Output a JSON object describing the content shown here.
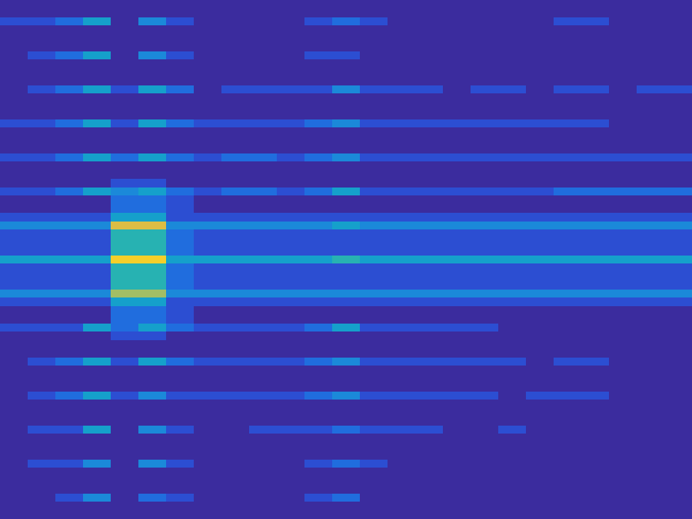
{
  "chart_data": {
    "type": "heatmap",
    "tick_labels": false,
    "color_range": [
      0,
      10
    ],
    "cells": [
      [
        0,
        0,
        0,
        0,
        0,
        0,
        0,
        0,
        0,
        0,
        0,
        0,
        0,
        0,
        0,
        0,
        0,
        0,
        0,
        0,
        0,
        0,
        0,
        0,
        0
      ],
      [
        0,
        0,
        0,
        0,
        0,
        0,
        0,
        0,
        0,
        0,
        0,
        0,
        0,
        0,
        0,
        0,
        0,
        0,
        0,
        0,
        0,
        0,
        0,
        0,
        0
      ],
      [
        1,
        1,
        2,
        4,
        0,
        3,
        1,
        0,
        0,
        0,
        0,
        1,
        2,
        1,
        0,
        0,
        0,
        0,
        0,
        0,
        1,
        1,
        0,
        0,
        0
      ],
      [
        0,
        0,
        0,
        0,
        0,
        0,
        0,
        0,
        0,
        0,
        0,
        0,
        0,
        0,
        0,
        0,
        0,
        0,
        0,
        0,
        0,
        0,
        0,
        0,
        0
      ],
      [
        0,
        0,
        0,
        0,
        0,
        0,
        0,
        0,
        0,
        0,
        0,
        0,
        0,
        0,
        0,
        0,
        0,
        0,
        0,
        0,
        0,
        0,
        0,
        0,
        0
      ],
      [
        0,
        0,
        0,
        0,
        0,
        0,
        0,
        0,
        0,
        0,
        0,
        0,
        0,
        0,
        0,
        0,
        0,
        0,
        0,
        0,
        0,
        0,
        0,
        0,
        0
      ],
      [
        0,
        1,
        2,
        4,
        0,
        3,
        1,
        0,
        0,
        0,
        0,
        1,
        1,
        0,
        0,
        0,
        0,
        0,
        0,
        0,
        0,
        0,
        0,
        0,
        0
      ],
      [
        0,
        0,
        0,
        0,
        0,
        0,
        0,
        0,
        0,
        0,
        0,
        0,
        0,
        0,
        0,
        0,
        0,
        0,
        0,
        0,
        0,
        0,
        0,
        0,
        0
      ],
      [
        0,
        0,
        0,
        0,
        0,
        0,
        0,
        0,
        0,
        0,
        0,
        0,
        0,
        0,
        0,
        0,
        0,
        0,
        0,
        0,
        0,
        0,
        0,
        0,
        0
      ],
      [
        0,
        0,
        0,
        0,
        0,
        0,
        0,
        0,
        0,
        0,
        0,
        0,
        0,
        0,
        0,
        0,
        0,
        0,
        0,
        0,
        0,
        0,
        0,
        0,
        0
      ],
      [
        0,
        1,
        2,
        4,
        1,
        4,
        2,
        0,
        1,
        1,
        1,
        1,
        3,
        1,
        1,
        1,
        0,
        1,
        1,
        0,
        1,
        1,
        0,
        1,
        1
      ],
      [
        0,
        0,
        0,
        0,
        0,
        0,
        0,
        0,
        0,
        0,
        0,
        0,
        0,
        0,
        0,
        0,
        0,
        0,
        0,
        0,
        0,
        0,
        0,
        0,
        0
      ],
      [
        0,
        0,
        0,
        0,
        0,
        0,
        0,
        0,
        0,
        0,
        0,
        0,
        0,
        0,
        0,
        0,
        0,
        0,
        0,
        0,
        0,
        0,
        0,
        0,
        0
      ],
      [
        0,
        0,
        0,
        0,
        0,
        0,
        0,
        0,
        0,
        0,
        0,
        0,
        0,
        0,
        0,
        0,
        0,
        0,
        0,
        0,
        0,
        0,
        0,
        0,
        0
      ],
      [
        1,
        1,
        2,
        4,
        1,
        4,
        2,
        1,
        1,
        1,
        1,
        2,
        3,
        1,
        1,
        1,
        1,
        1,
        1,
        1,
        1,
        1,
        0,
        0,
        0
      ],
      [
        0,
        0,
        0,
        0,
        0,
        0,
        0,
        0,
        0,
        0,
        0,
        0,
        0,
        0,
        0,
        0,
        0,
        0,
        0,
        0,
        0,
        0,
        0,
        0,
        0
      ],
      [
        0,
        0,
        0,
        0,
        0,
        0,
        0,
        0,
        0,
        0,
        0,
        0,
        0,
        0,
        0,
        0,
        0,
        0,
        0,
        0,
        0,
        0,
        0,
        0,
        0
      ],
      [
        0,
        0,
        0,
        0,
        0,
        0,
        0,
        0,
        0,
        0,
        0,
        0,
        0,
        0,
        0,
        0,
        0,
        0,
        0,
        0,
        0,
        0,
        0,
        0,
        0
      ],
      [
        1,
        1,
        2,
        4,
        2,
        4,
        2,
        1,
        2,
        2,
        1,
        2,
        3,
        1,
        1,
        1,
        1,
        1,
        1,
        1,
        1,
        1,
        1,
        1,
        1
      ],
      [
        0,
        0,
        0,
        0,
        0,
        0,
        0,
        0,
        0,
        0,
        0,
        0,
        0,
        0,
        0,
        0,
        0,
        0,
        0,
        0,
        0,
        0,
        0,
        0,
        0
      ],
      [
        0,
        0,
        0,
        0,
        0,
        0,
        0,
        0,
        0,
        0,
        0,
        0,
        0,
        0,
        0,
        0,
        0,
        0,
        0,
        0,
        0,
        0,
        0,
        0,
        0
      ],
      [
        0,
        0,
        0,
        0,
        1,
        1,
        0,
        0,
        0,
        0,
        0,
        0,
        0,
        0,
        0,
        0,
        0,
        0,
        0,
        0,
        0,
        0,
        0,
        0,
        0
      ],
      [
        1,
        1,
        2,
        4,
        3,
        4,
        2,
        1,
        2,
        2,
        1,
        2,
        4,
        1,
        1,
        1,
        1,
        1,
        1,
        1,
        2,
        2,
        2,
        2,
        2
      ],
      [
        0,
        0,
        0,
        0,
        2,
        2,
        1,
        0,
        0,
        0,
        0,
        0,
        0,
        0,
        0,
        0,
        0,
        0,
        0,
        0,
        0,
        0,
        0,
        0,
        0
      ],
      [
        0,
        0,
        0,
        0,
        2,
        2,
        1,
        0,
        0,
        0,
        0,
        0,
        0,
        0,
        0,
        0,
        0,
        0,
        0,
        0,
        0,
        0,
        0,
        0,
        0
      ],
      [
        1,
        1,
        1,
        1,
        4,
        4,
        1,
        1,
        1,
        1,
        1,
        1,
        1,
        1,
        1,
        1,
        1,
        1,
        1,
        1,
        1,
        1,
        1,
        1,
        1
      ],
      [
        3,
        3,
        3,
        3,
        8,
        8,
        3,
        3,
        3,
        3,
        3,
        3,
        4,
        3,
        3,
        3,
        3,
        3,
        3,
        3,
        3,
        3,
        3,
        3,
        3
      ],
      [
        1,
        1,
        1,
        1,
        5,
        5,
        2,
        1,
        1,
        1,
        1,
        1,
        1,
        1,
        1,
        1,
        1,
        1,
        1,
        1,
        1,
        1,
        1,
        1,
        1
      ],
      [
        1,
        1,
        1,
        1,
        5,
        5,
        2,
        1,
        1,
        1,
        1,
        1,
        1,
        1,
        1,
        1,
        1,
        1,
        1,
        1,
        1,
        1,
        1,
        1,
        1
      ],
      [
        1,
        1,
        1,
        1,
        5,
        5,
        2,
        1,
        1,
        1,
        1,
        1,
        1,
        1,
        1,
        1,
        1,
        1,
        1,
        1,
        1,
        1,
        1,
        1,
        1
      ],
      [
        4,
        4,
        4,
        4,
        9,
        9,
        4,
        4,
        4,
        4,
        4,
        4,
        5,
        4,
        4,
        4,
        4,
        4,
        4,
        4,
        4,
        4,
        4,
        4,
        4
      ],
      [
        1,
        1,
        1,
        1,
        5,
        5,
        2,
        1,
        1,
        1,
        1,
        1,
        1,
        1,
        1,
        1,
        1,
        1,
        1,
        1,
        1,
        1,
        1,
        1,
        1
      ],
      [
        1,
        1,
        1,
        1,
        5,
        5,
        2,
        1,
        1,
        1,
        1,
        1,
        1,
        1,
        1,
        1,
        1,
        1,
        1,
        1,
        1,
        1,
        1,
        1,
        1
      ],
      [
        1,
        1,
        1,
        1,
        5,
        5,
        2,
        1,
        1,
        1,
        1,
        1,
        1,
        1,
        1,
        1,
        1,
        1,
        1,
        1,
        1,
        1,
        1,
        1,
        1
      ],
      [
        3,
        3,
        3,
        3,
        7,
        7,
        3,
        3,
        3,
        3,
        3,
        3,
        3,
        3,
        3,
        3,
        3,
        3,
        3,
        3,
        3,
        3,
        3,
        3,
        3
      ],
      [
        1,
        1,
        1,
        1,
        4,
        4,
        1,
        1,
        1,
        1,
        1,
        1,
        1,
        1,
        1,
        1,
        1,
        1,
        1,
        1,
        1,
        1,
        1,
        1,
        1
      ],
      [
        0,
        0,
        0,
        0,
        2,
        2,
        1,
        0,
        0,
        0,
        0,
        0,
        0,
        0,
        0,
        0,
        0,
        0,
        0,
        0,
        0,
        0,
        0,
        0,
        0
      ],
      [
        0,
        0,
        0,
        0,
        2,
        2,
        1,
        0,
        0,
        0,
        0,
        0,
        0,
        0,
        0,
        0,
        0,
        0,
        0,
        0,
        0,
        0,
        0,
        0,
        0
      ],
      [
        1,
        1,
        1,
        4,
        2,
        4,
        2,
        1,
        1,
        1,
        1,
        2,
        4,
        1,
        1,
        1,
        1,
        1,
        0,
        0,
        0,
        0,
        0,
        0,
        0
      ],
      [
        0,
        0,
        0,
        0,
        1,
        1,
        0,
        0,
        0,
        0,
        0,
        0,
        0,
        0,
        0,
        0,
        0,
        0,
        0,
        0,
        0,
        0,
        0,
        0,
        0
      ],
      [
        0,
        0,
        0,
        0,
        0,
        0,
        0,
        0,
        0,
        0,
        0,
        0,
        0,
        0,
        0,
        0,
        0,
        0,
        0,
        0,
        0,
        0,
        0,
        0,
        0
      ],
      [
        0,
        0,
        0,
        0,
        0,
        0,
        0,
        0,
        0,
        0,
        0,
        0,
        0,
        0,
        0,
        0,
        0,
        0,
        0,
        0,
        0,
        0,
        0,
        0,
        0
      ],
      [
        0,
        1,
        2,
        4,
        1,
        4,
        2,
        1,
        1,
        1,
        1,
        2,
        3,
        1,
        1,
        1,
        1,
        1,
        1,
        0,
        1,
        1,
        0,
        0,
        0
      ],
      [
        0,
        0,
        0,
        0,
        0,
        0,
        0,
        0,
        0,
        0,
        0,
        0,
        0,
        0,
        0,
        0,
        0,
        0,
        0,
        0,
        0,
        0,
        0,
        0,
        0
      ],
      [
        0,
        0,
        0,
        0,
        0,
        0,
        0,
        0,
        0,
        0,
        0,
        0,
        0,
        0,
        0,
        0,
        0,
        0,
        0,
        0,
        0,
        0,
        0,
        0,
        0
      ],
      [
        0,
        0,
        0,
        0,
        0,
        0,
        0,
        0,
        0,
        0,
        0,
        0,
        0,
        0,
        0,
        0,
        0,
        0,
        0,
        0,
        0,
        0,
        0,
        0,
        0
      ],
      [
        0,
        1,
        2,
        4,
        1,
        3,
        1,
        1,
        1,
        1,
        1,
        2,
        3,
        1,
        1,
        1,
        1,
        1,
        0,
        1,
        1,
        1,
        0,
        0,
        0
      ],
      [
        0,
        0,
        0,
        0,
        0,
        0,
        0,
        0,
        0,
        0,
        0,
        0,
        0,
        0,
        0,
        0,
        0,
        0,
        0,
        0,
        0,
        0,
        0,
        0,
        0
      ],
      [
        0,
        0,
        0,
        0,
        0,
        0,
        0,
        0,
        0,
        0,
        0,
        0,
        0,
        0,
        0,
        0,
        0,
        0,
        0,
        0,
        0,
        0,
        0,
        0,
        0
      ],
      [
        0,
        0,
        0,
        0,
        0,
        0,
        0,
        0,
        0,
        0,
        0,
        0,
        0,
        0,
        0,
        0,
        0,
        0,
        0,
        0,
        0,
        0,
        0,
        0,
        0
      ],
      [
        0,
        1,
        1,
        4,
        0,
        3,
        1,
        0,
        0,
        1,
        1,
        1,
        2,
        1,
        1,
        1,
        0,
        0,
        1,
        0,
        0,
        0,
        0,
        0,
        0
      ],
      [
        0,
        0,
        0,
        0,
        0,
        0,
        0,
        0,
        0,
        0,
        0,
        0,
        0,
        0,
        0,
        0,
        0,
        0,
        0,
        0,
        0,
        0,
        0,
        0,
        0
      ],
      [
        0,
        0,
        0,
        0,
        0,
        0,
        0,
        0,
        0,
        0,
        0,
        0,
        0,
        0,
        0,
        0,
        0,
        0,
        0,
        0,
        0,
        0,
        0,
        0,
        0
      ],
      [
        0,
        0,
        0,
        0,
        0,
        0,
        0,
        0,
        0,
        0,
        0,
        0,
        0,
        0,
        0,
        0,
        0,
        0,
        0,
        0,
        0,
        0,
        0,
        0,
        0
      ],
      [
        0,
        1,
        1,
        3,
        0,
        3,
        1,
        0,
        0,
        0,
        0,
        1,
        2,
        1,
        0,
        0,
        0,
        0,
        0,
        0,
        0,
        0,
        0,
        0,
        0
      ],
      [
        0,
        0,
        0,
        0,
        0,
        0,
        0,
        0,
        0,
        0,
        0,
        0,
        0,
        0,
        0,
        0,
        0,
        0,
        0,
        0,
        0,
        0,
        0,
        0,
        0
      ],
      [
        0,
        0,
        0,
        0,
        0,
        0,
        0,
        0,
        0,
        0,
        0,
        0,
        0,
        0,
        0,
        0,
        0,
        0,
        0,
        0,
        0,
        0,
        0,
        0,
        0
      ],
      [
        0,
        0,
        0,
        0,
        0,
        0,
        0,
        0,
        0,
        0,
        0,
        0,
        0,
        0,
        0,
        0,
        0,
        0,
        0,
        0,
        0,
        0,
        0,
        0,
        0
      ],
      [
        0,
        0,
        1,
        3,
        0,
        2,
        1,
        0,
        0,
        0,
        0,
        1,
        2,
        0,
        0,
        0,
        0,
        0,
        0,
        0,
        0,
        0,
        0,
        0,
        0
      ],
      [
        0,
        0,
        0,
        0,
        0,
        0,
        0,
        0,
        0,
        0,
        0,
        0,
        0,
        0,
        0,
        0,
        0,
        0,
        0,
        0,
        0,
        0,
        0,
        0,
        0
      ],
      [
        0,
        0,
        0,
        0,
        0,
        0,
        0,
        0,
        0,
        0,
        0,
        0,
        0,
        0,
        0,
        0,
        0,
        0,
        0,
        0,
        0,
        0,
        0,
        0,
        0
      ]
    ]
  }
}
